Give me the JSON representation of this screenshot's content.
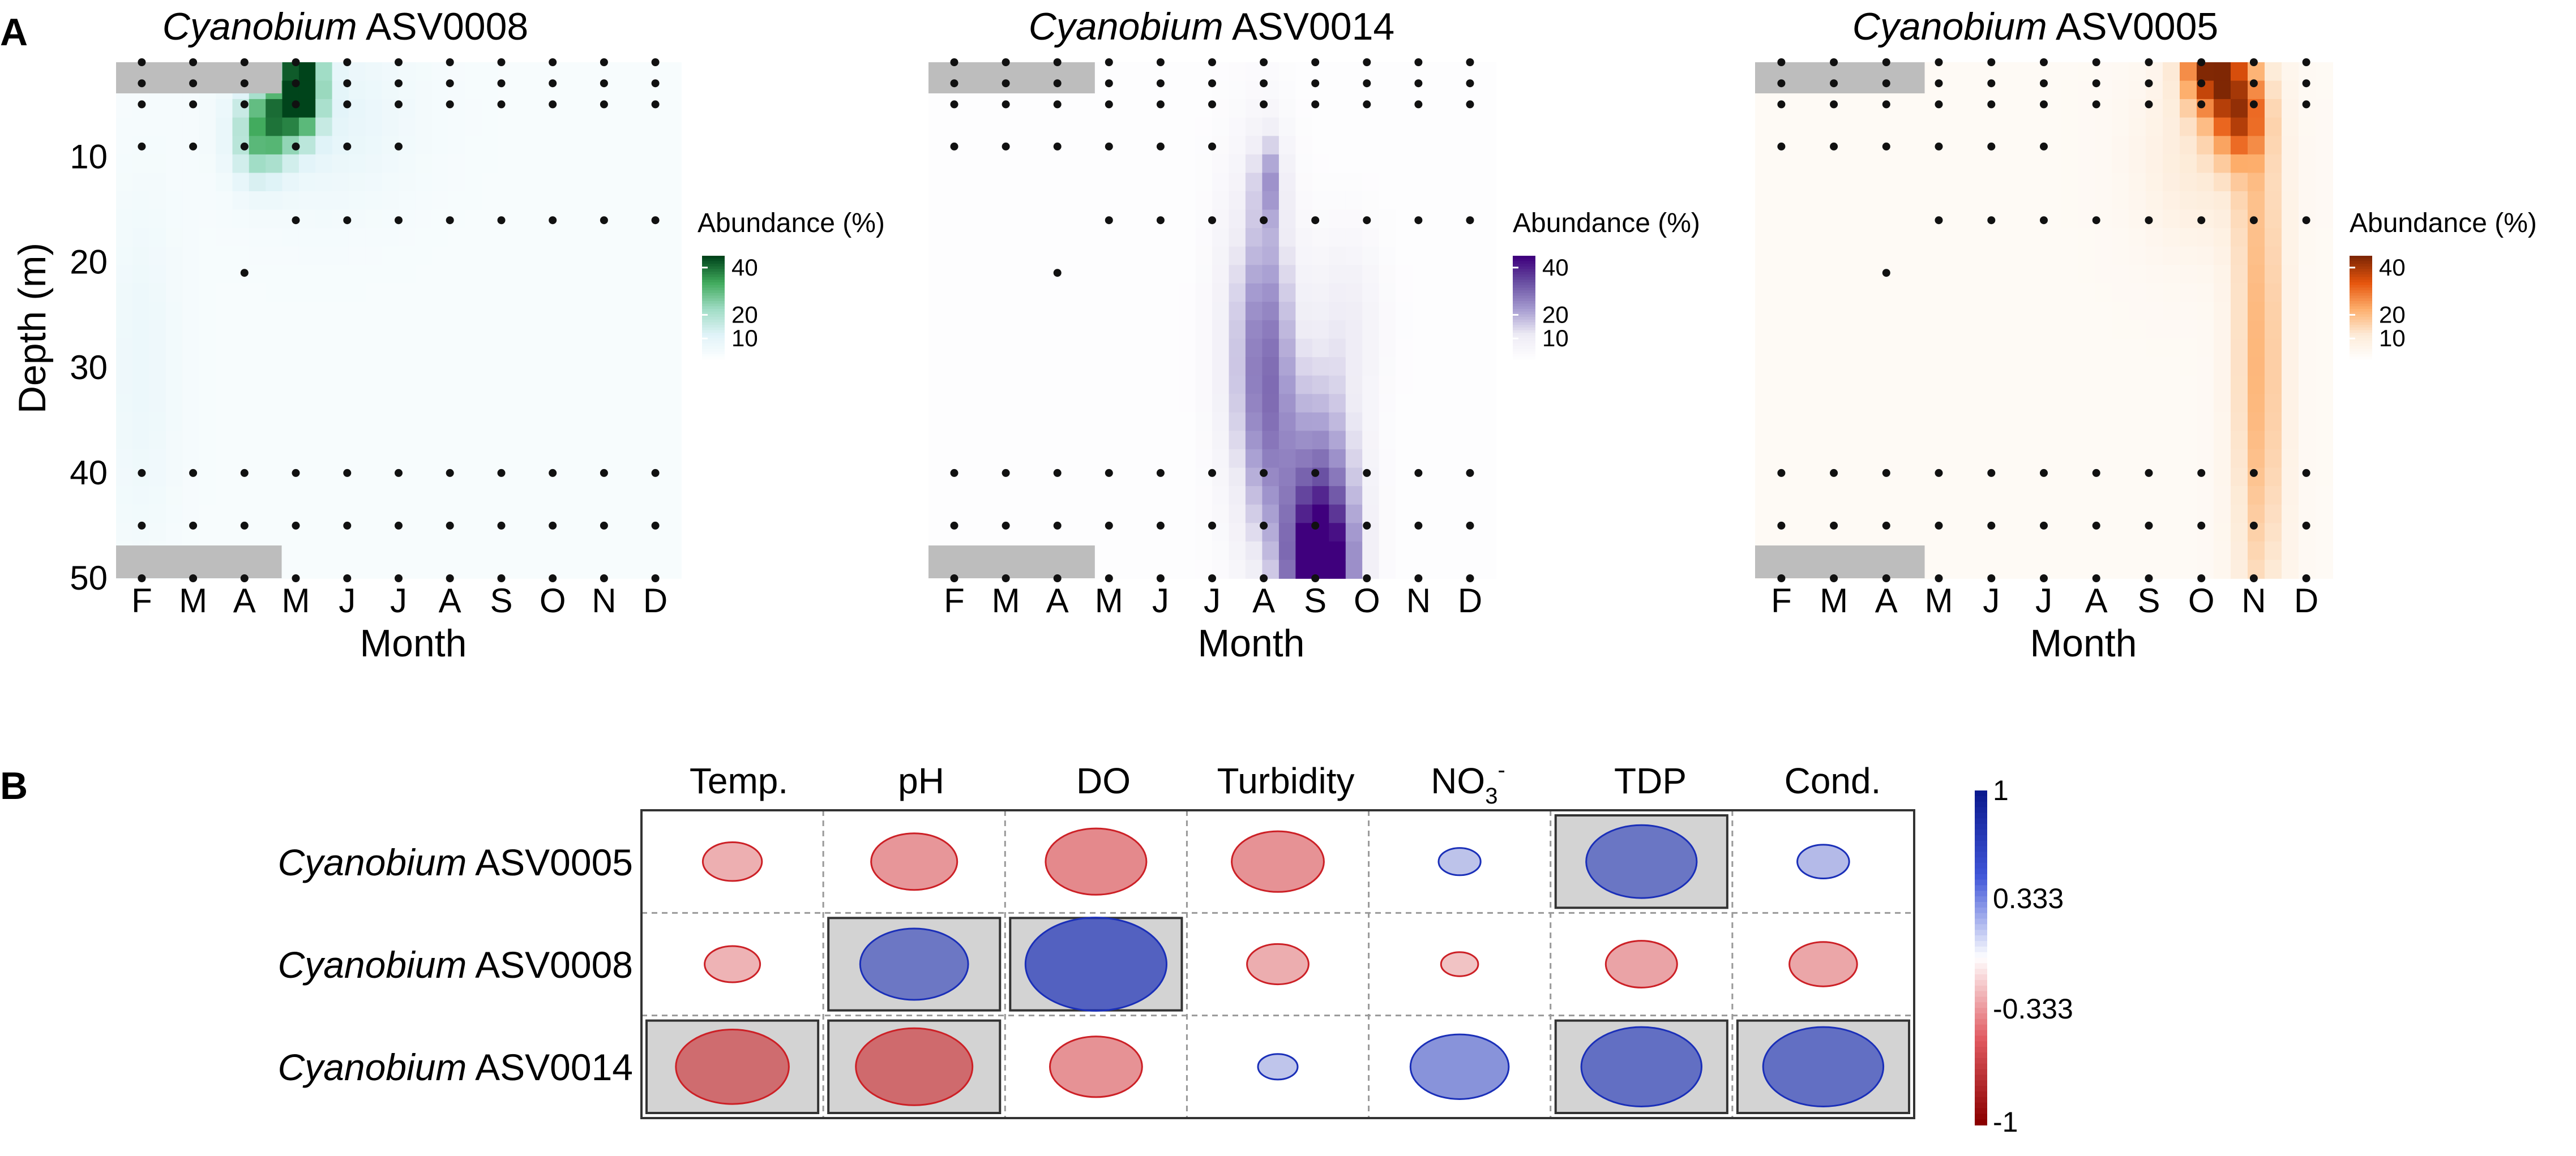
{
  "panel_labels": {
    "a": "A",
    "b": "B"
  },
  "colors": {
    "missing": "#bdbdbd",
    "heatmap_scales": [
      [
        "#ffffff",
        "#e0f3f8",
        "#9fdcc4",
        "#41ab5d",
        "#00441b"
      ],
      [
        "#ffffff",
        "#eeecf5",
        "#a59bd0",
        "#6a51a3",
        "#3f007d"
      ],
      [
        "#ffffff",
        "#fdebd8",
        "#fdae6b",
        "#e6550d",
        "#7f2704"
      ]
    ],
    "corr_negative": "#cc2026",
    "corr_positive": "#1a2fb8",
    "corr_highlight": "#d3d3d3"
  },
  "chart_data": [
    {
      "type": "heatmap",
      "title_italic": "Cyanobium",
      "title_rest": " ASV0008",
      "xlabel": "Month",
      "ylabel": "Depth (m)",
      "x_categories": [
        "F",
        "M",
        "A",
        "M",
        "J",
        "J",
        "A",
        "S",
        "O",
        "N",
        "D"
      ],
      "y_ticks": [
        10,
        20,
        30,
        40,
        50
      ],
      "ylim": [
        1,
        50
      ],
      "legend_title": "Abundance (%)",
      "legend_ticks": [
        10,
        20,
        40
      ],
      "legend_max": 45,
      "base": 3,
      "blobs": [
        {
          "m": 3.15,
          "d": 2,
          "a": 44,
          "sm": 0.25,
          "sd": 3
        },
        {
          "m": 2.7,
          "d": 5.5,
          "a": 28,
          "sm": 0.45,
          "sd": 2.5
        },
        {
          "m": 2.3,
          "d": 9,
          "a": 18,
          "sm": 0.35,
          "sd": 2.5
        },
        {
          "m": 3.5,
          "d": 6,
          "a": 6,
          "sm": 1.2,
          "sd": 6
        },
        {
          "m": 0,
          "d": 30,
          "a": 4,
          "sm": 0.5,
          "sd": 12
        }
      ]
    },
    {
      "type": "heatmap",
      "title_italic": "Cyanobium",
      "title_rest": " ASV0014",
      "xlabel": "Month",
      "ylabel": "",
      "x_categories": [
        "F",
        "M",
        "A",
        "M",
        "J",
        "J",
        "A",
        "S",
        "O",
        "N",
        "D"
      ],
      "y_ticks": [],
      "ylim": [
        1,
        50
      ],
      "legend_title": "Abundance (%)",
      "legend_ticks": [
        10,
        20,
        40
      ],
      "legend_max": 45,
      "base": 1,
      "blobs": [
        {
          "m": 7.1,
          "d": 50,
          "a": 42,
          "sm": 0.45,
          "sd": 5
        },
        {
          "m": 7.1,
          "d": 42,
          "a": 26,
          "sm": 0.55,
          "sd": 8
        },
        {
          "m": 6.05,
          "d": 30,
          "a": 26,
          "sm": 0.4,
          "sd": 12
        },
        {
          "m": 6.1,
          "d": 12,
          "a": 14,
          "sm": 0.2,
          "sd": 3
        },
        {
          "m": 7.6,
          "d": 25,
          "a": 8,
          "sm": 0.5,
          "sd": 6
        },
        {
          "m": 5.4,
          "d": 28,
          "a": 6,
          "sm": 0.4,
          "sd": 12
        }
      ]
    },
    {
      "type": "heatmap",
      "title_italic": "Cyanobium",
      "title_rest": " ASV0005",
      "xlabel": "Month",
      "ylabel": "",
      "x_categories": [
        "F",
        "M",
        "A",
        "M",
        "J",
        "J",
        "A",
        "S",
        "O",
        "N",
        "D"
      ],
      "y_ticks": [],
      "ylim": [
        1,
        50
      ],
      "legend_title": "Abundance (%)",
      "legend_ticks": [
        10,
        20,
        40
      ],
      "legend_max": 45,
      "base": 3,
      "blobs": [
        {
          "m": 8.2,
          "d": 1,
          "a": 40,
          "sm": 0.4,
          "sd": 3
        },
        {
          "m": 8.7,
          "d": 6,
          "a": 26,
          "sm": 0.35,
          "sd": 3
        },
        {
          "m": 9.1,
          "d": 30,
          "a": 18,
          "sm": 0.35,
          "sd": 20
        },
        {
          "m": 8.0,
          "d": 10,
          "a": 8,
          "sm": 0.8,
          "sd": 6
        }
      ]
    },
    {
      "type": "correlation",
      "columns": [
        "Temp.",
        "pH",
        "DO",
        "Turbidity",
        "NO",
        "TDP",
        "Cond."
      ],
      "no3_sub": "3",
      "no3_sup": "-",
      "rows": [
        {
          "italic": "Cyanobium",
          "rest": " ASV0005"
        },
        {
          "italic": "Cyanobium",
          "rest": " ASV0008"
        },
        {
          "italic": "Cyanobium",
          "rest": " ASV0014"
        }
      ],
      "values": [
        [
          -0.28,
          -0.5,
          -0.62,
          -0.55,
          0.14,
          0.7,
          0.22
        ],
        [
          -0.25,
          0.68,
          0.95,
          -0.3,
          -0.1,
          -0.38,
          -0.35
        ],
        [
          -0.72,
          -0.75,
          -0.55,
          0.12,
          0.6,
          0.78,
          0.78
        ]
      ],
      "significant": [
        [
          false,
          false,
          false,
          false,
          false,
          true,
          false
        ],
        [
          false,
          true,
          true,
          false,
          false,
          false,
          false
        ],
        [
          true,
          true,
          false,
          false,
          false,
          true,
          true
        ]
      ],
      "colorbar_ticks": [
        "1",
        "0.333",
        "-0.333",
        "-1"
      ]
    }
  ]
}
